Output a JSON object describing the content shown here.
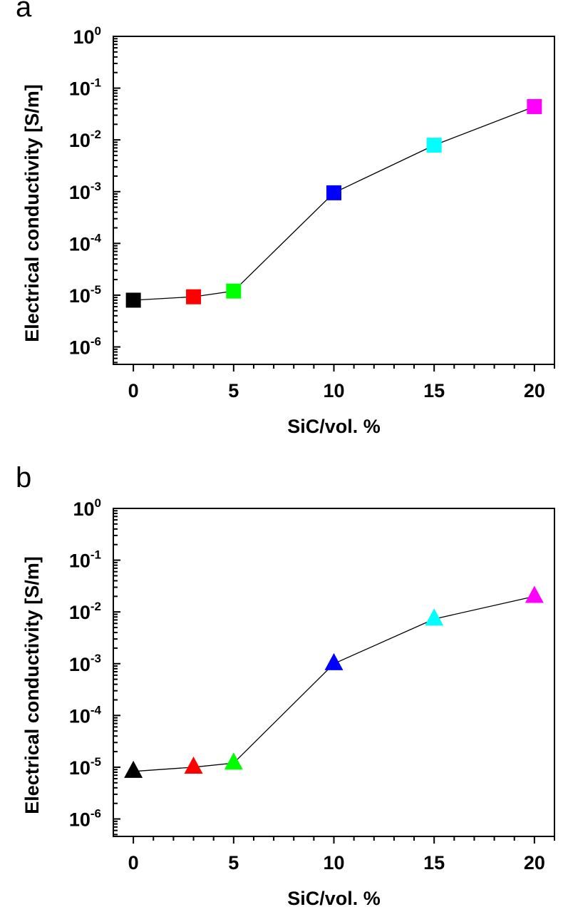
{
  "chart_data": [
    {
      "panel": "a",
      "type": "line",
      "marker": "square",
      "xlabel": "SiC/vol. %",
      "ylabel": "Electrical conductivity [S/m]",
      "xlim": [
        -1,
        21
      ],
      "ylim": [
        4.6e-07,
        1
      ],
      "yscale": "log",
      "xticks": [
        0,
        5,
        10,
        15,
        20
      ],
      "yticks": [
        {
          "base": "10",
          "exp": "0"
        },
        {
          "base": "10",
          "exp": "-1"
        },
        {
          "base": "10",
          "exp": "-2"
        },
        {
          "base": "10",
          "exp": "-3"
        },
        {
          "base": "10",
          "exp": "-4"
        },
        {
          "base": "10",
          "exp": "-5"
        },
        {
          "base": "10",
          "exp": "-6"
        }
      ],
      "grid": false,
      "x": [
        0,
        3,
        5,
        10,
        15,
        20
      ],
      "y": [
        8e-06,
        9.3e-06,
        1.2e-05,
        0.00095,
        0.0079,
        0.044
      ],
      "point_colors": [
        "#000000",
        "#ff0000",
        "#00ff00",
        "#0000ff",
        "#00ffff",
        "#ff00ff"
      ],
      "line_color": "#000000"
    },
    {
      "panel": "b",
      "type": "line",
      "marker": "triangle",
      "xlabel": "SiC/vol. %",
      "ylabel": "Electrical conductivity [S/m]",
      "xlim": [
        -1,
        21
      ],
      "ylim": [
        4.6e-07,
        1
      ],
      "yscale": "log",
      "xticks": [
        0,
        5,
        10,
        15,
        20
      ],
      "yticks": [
        {
          "base": "10",
          "exp": "0"
        },
        {
          "base": "10",
          "exp": "-1"
        },
        {
          "base": "10",
          "exp": "-2"
        },
        {
          "base": "10",
          "exp": "-3"
        },
        {
          "base": "10",
          "exp": "-4"
        },
        {
          "base": "10",
          "exp": "-5"
        },
        {
          "base": "10",
          "exp": "-6"
        }
      ],
      "grid": false,
      "x": [
        0,
        3,
        5,
        10,
        15,
        20
      ],
      "y": [
        8.3e-06,
        1e-05,
        1.2e-05,
        0.001,
        0.0073,
        0.02
      ],
      "point_colors": [
        "#000000",
        "#ff0000",
        "#00ff00",
        "#0000ff",
        "#00ffff",
        "#ff00ff"
      ],
      "line_color": "#000000"
    }
  ]
}
